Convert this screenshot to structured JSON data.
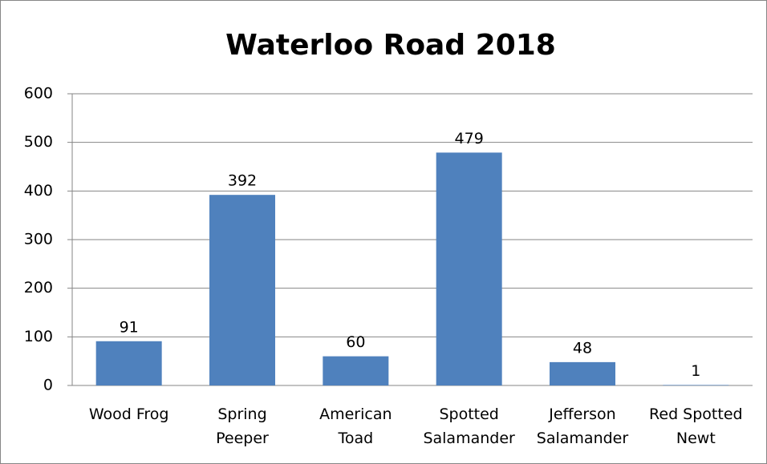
{
  "chart_data": {
    "type": "bar",
    "title": "Waterloo Road 2018",
    "categories": [
      "Wood Frog",
      "Spring Peeper",
      "American Toad",
      "Spotted Salamander",
      "Jefferson Salamander",
      "Red Spotted Newt"
    ],
    "values": [
      91,
      392,
      60,
      479,
      48,
      1
    ],
    "color": "#4f81bd",
    "ylim": [
      0,
      600
    ],
    "yticks": [
      0,
      100,
      200,
      300,
      400,
      500,
      600
    ],
    "grid": true
  }
}
